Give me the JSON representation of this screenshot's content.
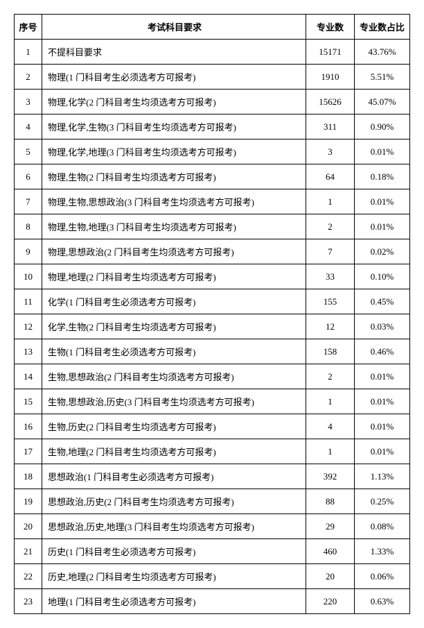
{
  "table": {
    "headers": {
      "index": "序号",
      "requirement": "考试科目要求",
      "count": "专业数",
      "percent": "专业数占比"
    },
    "rows": [
      {
        "index": "1",
        "requirement": "不提科目要求",
        "count": "15171",
        "percent": "43.76%"
      },
      {
        "index": "2",
        "requirement": "物理(1 门科目考生必须选考方可报考)",
        "count": "1910",
        "percent": "5.51%"
      },
      {
        "index": "3",
        "requirement": "物理,化学(2 门科目考生均须选考方可报考)",
        "count": "15626",
        "percent": "45.07%"
      },
      {
        "index": "4",
        "requirement": "物理,化学,生物(3 门科目考生均须选考方可报考)",
        "count": "311",
        "percent": "0.90%"
      },
      {
        "index": "5",
        "requirement": "物理,化学,地理(3 门科目考生均须选考方可报考)",
        "count": "3",
        "percent": "0.01%"
      },
      {
        "index": "6",
        "requirement": "物理,生物(2 门科目考生均须选考方可报考)",
        "count": "64",
        "percent": "0.18%"
      },
      {
        "index": "7",
        "requirement": "物理,生物,思想政治(3 门科目考生均须选考方可报考)",
        "count": "1",
        "percent": "0.01%"
      },
      {
        "index": "8",
        "requirement": "物理,生物,地理(3 门科目考生均须选考方可报考)",
        "count": "2",
        "percent": "0.01%"
      },
      {
        "index": "9",
        "requirement": "物理,思想政治(2 门科目考生均须选考方可报考)",
        "count": "7",
        "percent": "0.02%"
      },
      {
        "index": "10",
        "requirement": "物理,地理(2 门科目考生均须选考方可报考)",
        "count": "33",
        "percent": "0.10%"
      },
      {
        "index": "11",
        "requirement": "化学(1 门科目考生必须选考方可报考)",
        "count": "155",
        "percent": "0.45%"
      },
      {
        "index": "12",
        "requirement": "化学,生物(2 门科目考生均须选考方可报考)",
        "count": "12",
        "percent": "0.03%"
      },
      {
        "index": "13",
        "requirement": "生物(1 门科目考生必须选考方可报考)",
        "count": "158",
        "percent": "0.46%"
      },
      {
        "index": "14",
        "requirement": "生物,思想政治(2 门科目考生均须选考方可报考)",
        "count": "2",
        "percent": "0.01%"
      },
      {
        "index": "15",
        "requirement": "生物,思想政治,历史(3 门科目考生均须选考方可报考)",
        "count": "1",
        "percent": "0.01%"
      },
      {
        "index": "16",
        "requirement": "生物,历史(2 门科目考生均须选考方可报考)",
        "count": "4",
        "percent": "0.01%"
      },
      {
        "index": "17",
        "requirement": "生物,地理(2 门科目考生均须选考方可报考)",
        "count": "1",
        "percent": "0.01%"
      },
      {
        "index": "18",
        "requirement": "思想政治(1 门科目考生必须选考方可报考)",
        "count": "392",
        "percent": "1.13%"
      },
      {
        "index": "19",
        "requirement": "思想政治,历史(2 门科目考生均须选考方可报考)",
        "count": "88",
        "percent": "0.25%"
      },
      {
        "index": "20",
        "requirement": "思想政治,历史,地理(3 门科目考生均须选考方可报考)",
        "count": "29",
        "percent": "0.08%"
      },
      {
        "index": "21",
        "requirement": "历史(1 门科目考生必须选考方可报考)",
        "count": "460",
        "percent": "1.33%"
      },
      {
        "index": "22",
        "requirement": "历史,地理(2 门科目考生均须选考方可报考)",
        "count": "20",
        "percent": "0.06%"
      },
      {
        "index": "23",
        "requirement": "地理(1 门科目考生必须选考方可报考)",
        "count": "220",
        "percent": "0.63%"
      }
    ]
  }
}
